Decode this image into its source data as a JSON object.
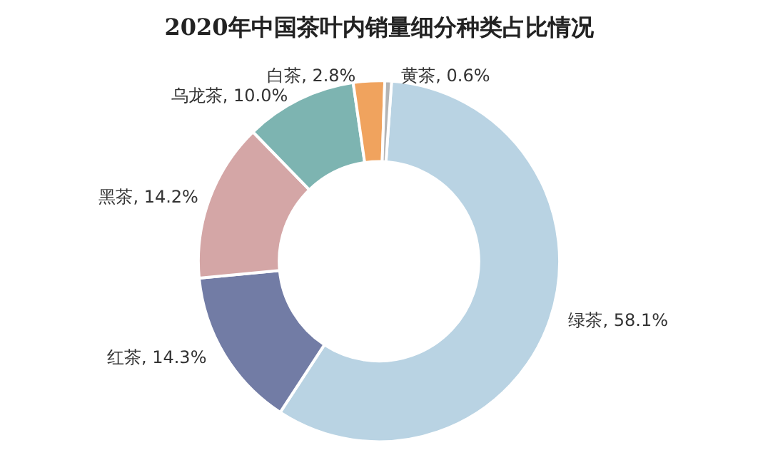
{
  "chart_data": {
    "type": "donut",
    "title": "2020年中国茶叶内销量细分种类占比情况",
    "categories": [
      "绿茶",
      "红茶",
      "黑茶",
      "乌龙茶",
      "白茶",
      "黄茶"
    ],
    "values": [
      58.1,
      14.3,
      14.2,
      10.0,
      2.8,
      0.6
    ],
    "colors": [
      "#b9d3e3",
      "#727ca5",
      "#d4a6a6",
      "#7db4b1",
      "#f0a35e",
      "#b4b4b4"
    ],
    "value_labels": [
      "58.1%",
      "14.3%",
      "14.2%",
      "10.0%",
      "2.8%",
      "0.6%"
    ],
    "legend": false
  }
}
